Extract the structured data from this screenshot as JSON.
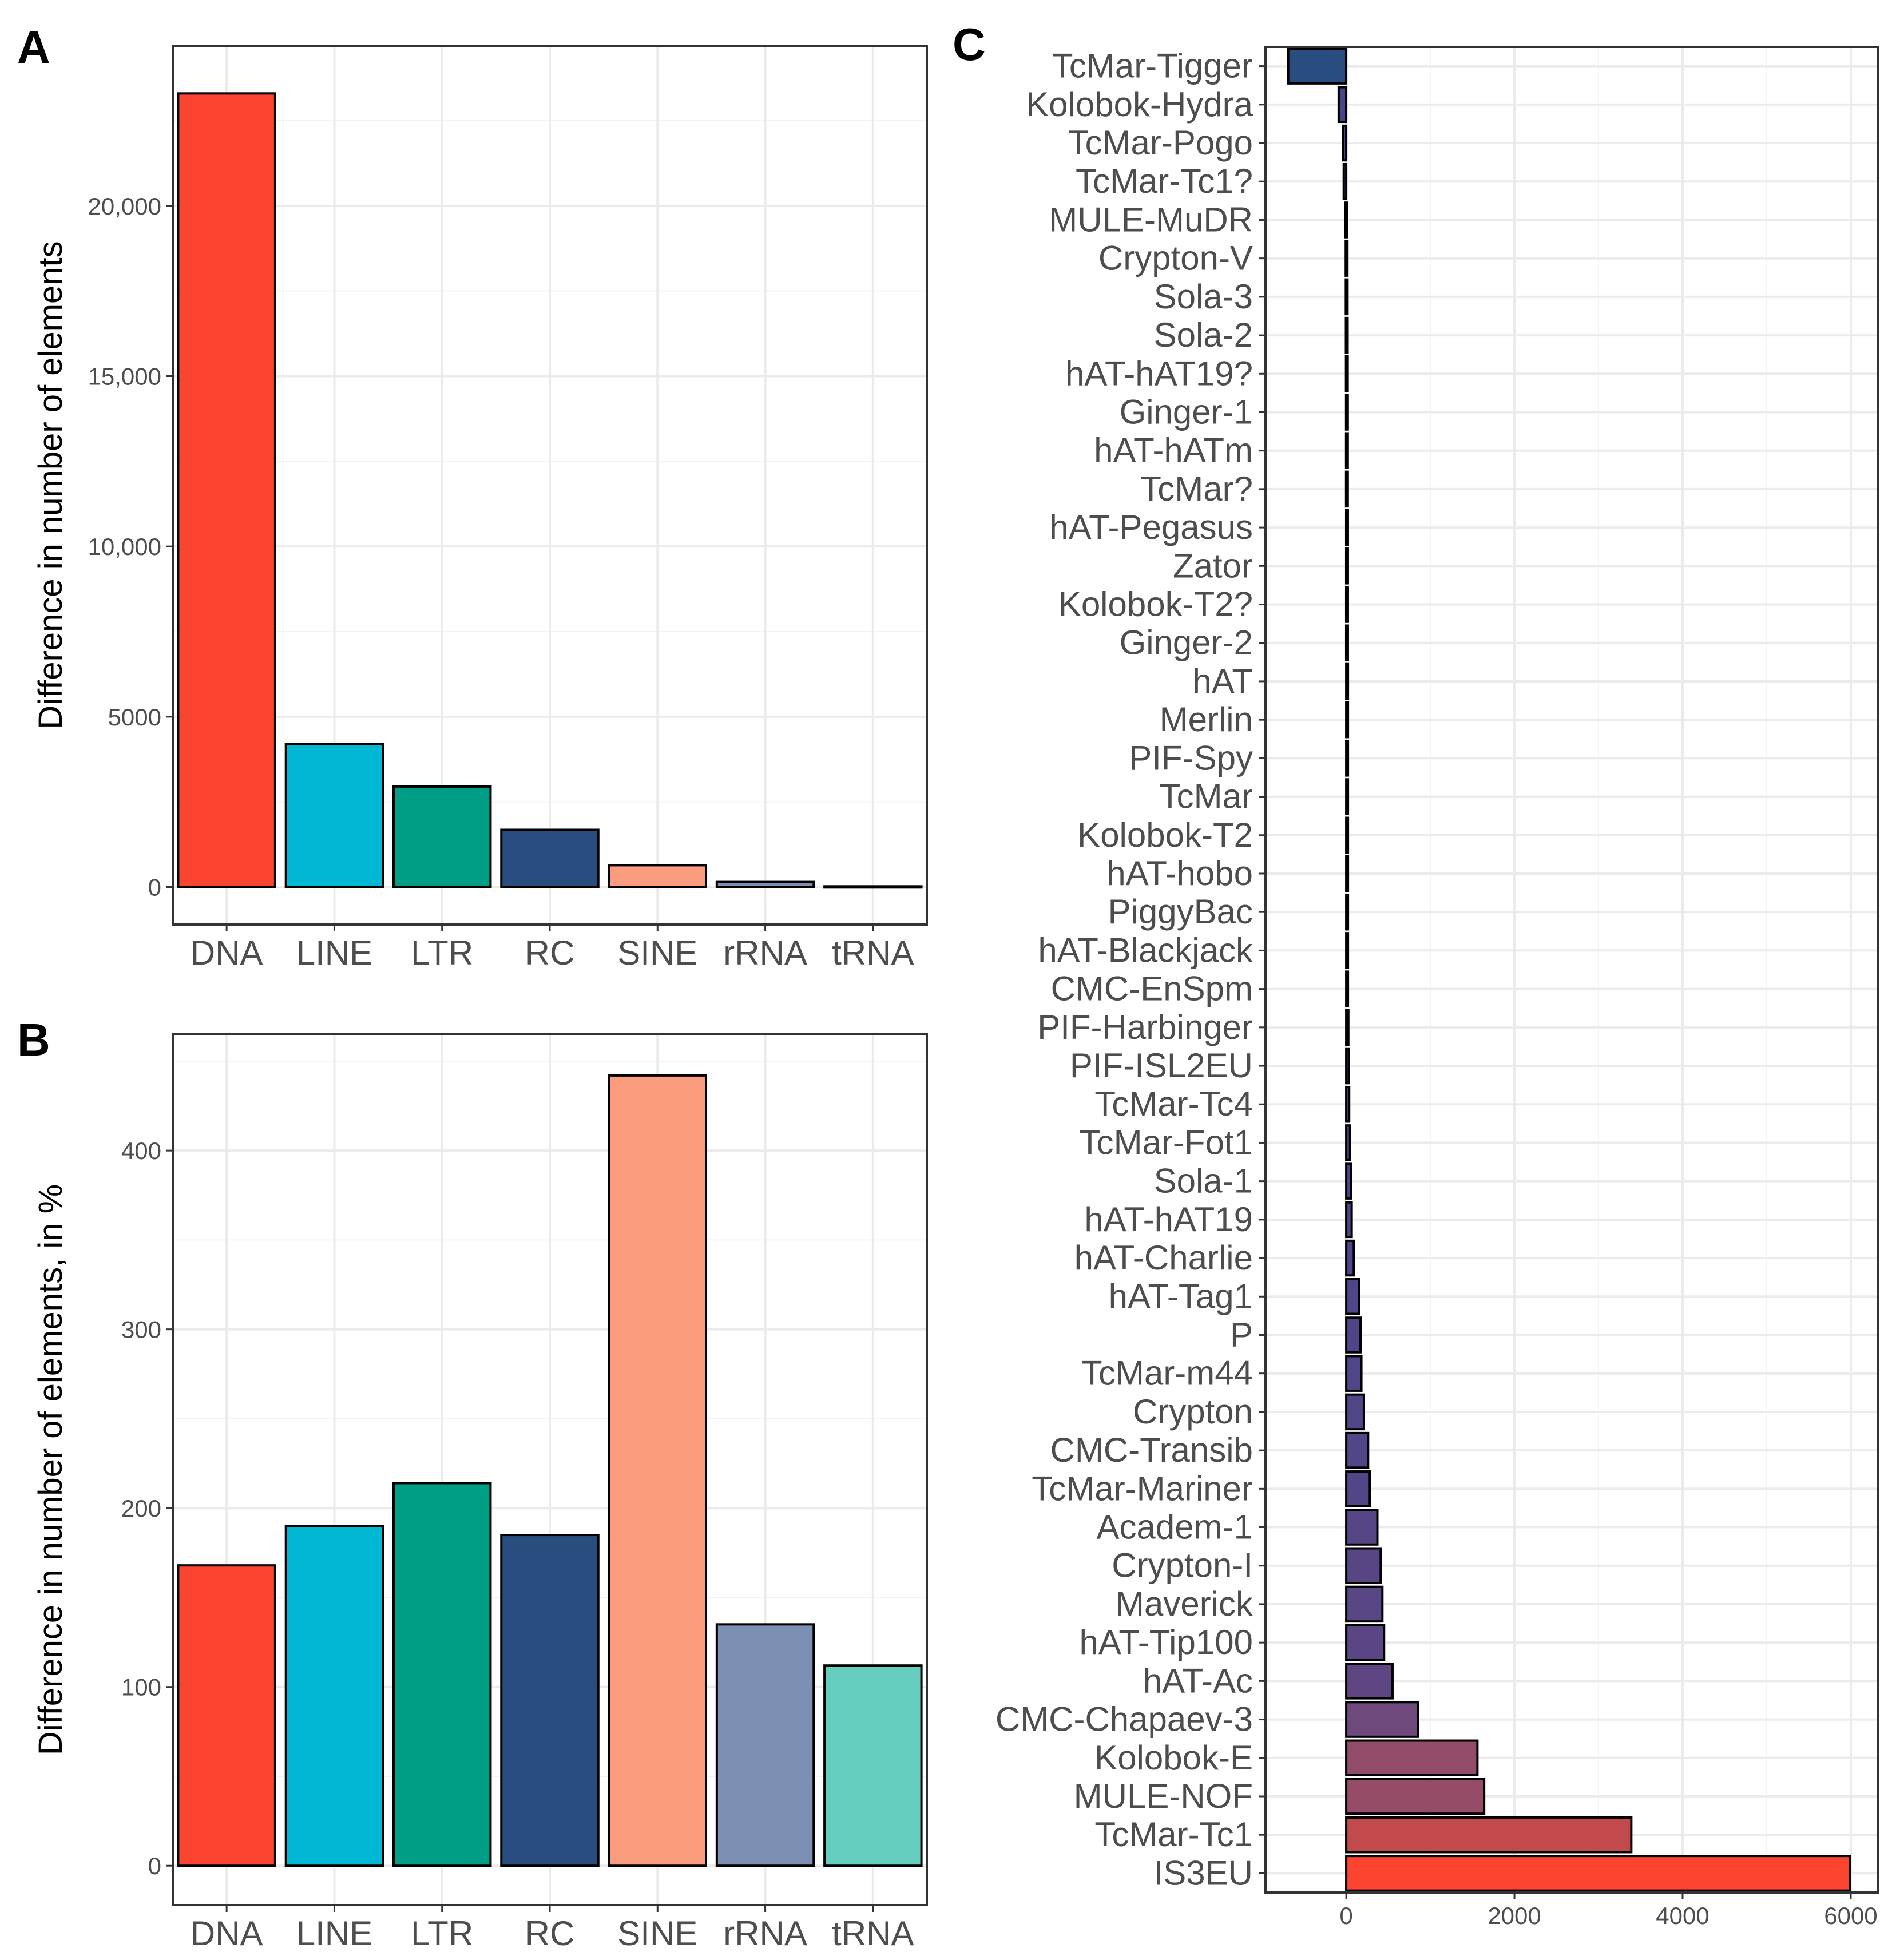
{
  "chart_data": [
    {
      "panel": "A",
      "type": "bar",
      "ylabel": "Difference in number of elements",
      "categories": [
        "DNA",
        "LINE",
        "LTR",
        "RC",
        "SINE",
        "rRNA",
        "tRNA"
      ],
      "values": [
        23300,
        4200,
        2950,
        1680,
        640,
        150,
        20
      ],
      "colors": [
        "#fc4530",
        "#00b8d4",
        "#009e85",
        "#2a4d80",
        "#fc9c7e",
        "#7d8fb3",
        "#66cebe"
      ],
      "ylim": [
        -1100,
        24700
      ],
      "yticks": [
        0,
        5000,
        10000,
        15000,
        20000
      ],
      "ytick_labels": [
        "0",
        "5000",
        "10,000",
        "15,000",
        "20,000"
      ]
    },
    {
      "panel": "B",
      "type": "bar",
      "ylabel": "Difference in number of elements, in %",
      "categories": [
        "DNA",
        "LINE",
        "LTR",
        "RC",
        "SINE",
        "rRNA",
        "tRNA"
      ],
      "values": [
        168,
        190,
        214,
        185,
        442,
        135,
        112
      ],
      "colors": [
        "#fc4530",
        "#00b8d4",
        "#009e85",
        "#2a4d80",
        "#fc9c7e",
        "#7d8fb3",
        "#66cebe"
      ],
      "ylim": [
        -22,
        465
      ],
      "yticks": [
        0,
        100,
        200,
        300,
        400
      ],
      "ytick_labels": [
        "0",
        "100",
        "200",
        "300",
        "400"
      ]
    },
    {
      "panel": "C",
      "type": "bar",
      "orientation": "horizontal",
      "categories": [
        "TcMar-Tigger",
        "Kolobok-Hydra",
        "TcMar-Pogo",
        "TcMar-Tc1?",
        "MULE-MuDR",
        "Crypton-V",
        "Sola-3",
        "Sola-2",
        "hAT-hAT19?",
        "Ginger-1",
        "hAT-hATm",
        "TcMar?",
        "hAT-Pegasus",
        "Zator",
        "Kolobok-T2?",
        "Ginger-2",
        "hAT",
        "Merlin",
        "PIF-Spy",
        "TcMar",
        "Kolobok-T2",
        "hAT-hobo",
        "PiggyBac",
        "hAT-Blackjack",
        "CMC-EnSpm",
        "PIF-Harbinger",
        "PIF-ISL2EU",
        "TcMar-Tc4",
        "TcMar-Fot1",
        "Sola-1",
        "hAT-hAT19",
        "hAT-Charlie",
        "hAT-Tag1",
        "P",
        "TcMar-m44",
        "Crypton",
        "CMC-Transib",
        "TcMar-Mariner",
        "Academ-1",
        "Crypton-I",
        "Maverick",
        "hAT-Tip100",
        "hAT-Ac",
        "CMC-Chapaev-3",
        "Kolobok-E",
        "MULE-NOF",
        "TcMar-Tc1",
        "IS3EU"
      ],
      "values": [
        -690,
        -90,
        -35,
        -30,
        -10,
        -6,
        -5,
        -4,
        -3,
        -2,
        -2,
        -2,
        -1,
        -1,
        -1,
        -1,
        1,
        2,
        3,
        6,
        8,
        10,
        12,
        15,
        20,
        25,
        30,
        35,
        45,
        55,
        65,
        90,
        150,
        170,
        180,
        210,
        260,
        280,
        370,
        410,
        430,
        450,
        550,
        850,
        1560,
        1640,
        3390,
        5990
      ],
      "colors": [
        "#2a4d80",
        "#47468a",
        "#47468a",
        "#47468a",
        "#47468a",
        "#47468a",
        "#47468a",
        "#47468a",
        "#47468a",
        "#47468a",
        "#47468a",
        "#47468a",
        "#47468a",
        "#47468a",
        "#47468a",
        "#47468a",
        "#47468a",
        "#47468a",
        "#47468a",
        "#47468a",
        "#47468a",
        "#47468a",
        "#47468a",
        "#47468a",
        "#47468a",
        "#47468a",
        "#47468a",
        "#47468a",
        "#49468a",
        "#49468a",
        "#4a4689",
        "#4b4689",
        "#4d4689",
        "#4e4688",
        "#4e4688",
        "#4f4688",
        "#514687",
        "#524687",
        "#564685",
        "#584684",
        "#594684",
        "#5a4684",
        "#5f4682",
        "#6e4a7c",
        "#934b6a",
        "#964b68",
        "#c24a4d",
        "#fc4530"
      ],
      "xlim": [
        -960,
        6320
      ],
      "xticks": [
        0,
        2000,
        4000,
        6000
      ],
      "xtick_labels": [
        "0",
        "2000",
        "4000",
        "6000"
      ]
    }
  ],
  "panel_labels": {
    "a": "A",
    "b": "B",
    "c": "C"
  }
}
